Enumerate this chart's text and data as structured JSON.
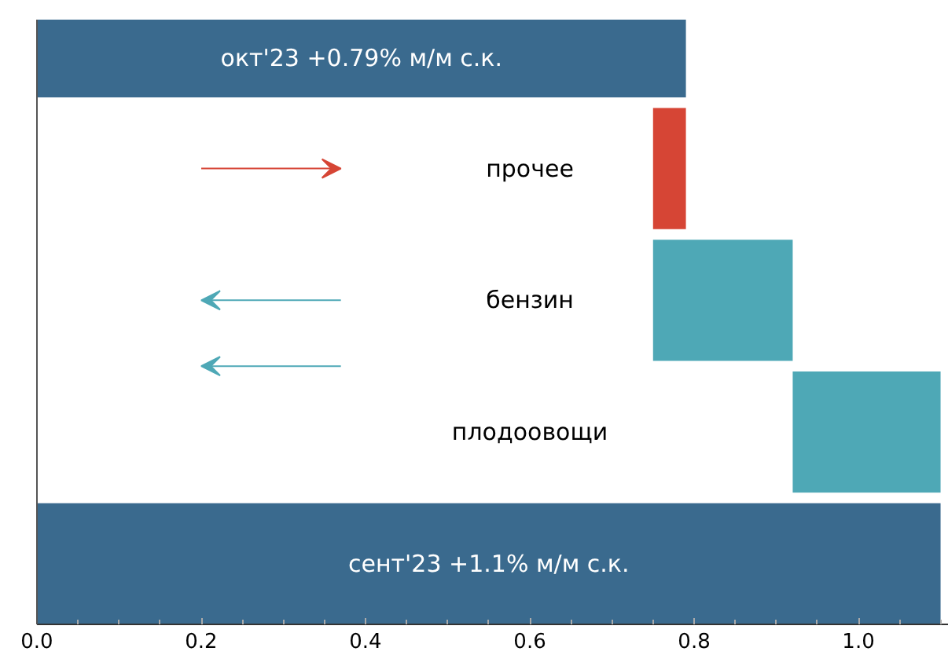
{
  "chart_data": {
    "type": "bar",
    "orientation": "horizontal",
    "categories": [
      "окт'23 +0.79% м/м с.к.",
      "прочее",
      "бензин",
      "плодоовощи",
      "сент'23 +1.1% м/м с.к."
    ],
    "values": [
      0.79,
      0.04,
      -0.17,
      -0.18,
      1.1
    ],
    "base": [
      0,
      0.75,
      0.92,
      1.1,
      0
    ],
    "colors": [
      "#3a6a8e",
      "#d64535",
      "#4ea8b6",
      "#4ea8b6",
      "#3a6a8e"
    ],
    "xlim": [
      0,
      1.11
    ],
    "xticks": [
      {
        "value": 0,
        "label": "0.0"
      },
      {
        "value": 0.05,
        "label": null
      },
      {
        "value": 0.1,
        "label": null
      },
      {
        "value": 0.15,
        "label": null
      },
      {
        "value": 0.2,
        "label": "0.2"
      },
      {
        "value": 0.25,
        "label": null
      },
      {
        "value": 0.3,
        "label": null
      },
      {
        "value": 0.35,
        "label": null
      },
      {
        "value": 0.4,
        "label": "0.4"
      },
      {
        "value": 0.45,
        "label": null
      },
      {
        "value": 0.5,
        "label": null
      },
      {
        "value": 0.55,
        "label": null
      },
      {
        "value": 0.6,
        "label": "0.6"
      },
      {
        "value": 0.65,
        "label": null
      },
      {
        "value": 0.7,
        "label": null
      },
      {
        "value": 0.75,
        "label": null
      },
      {
        "value": 0.8,
        "label": "0.8"
      },
      {
        "value": 0.85,
        "label": null
      },
      {
        "value": 0.9,
        "label": null
      },
      {
        "value": 0.95,
        "label": null
      },
      {
        "value": 1.0,
        "label": "1.0"
      },
      {
        "value": 1.05,
        "label": null
      },
      {
        "value": 1.1,
        "label": null
      }
    ],
    "tick_labels": "x",
    "grid": false
  }
}
